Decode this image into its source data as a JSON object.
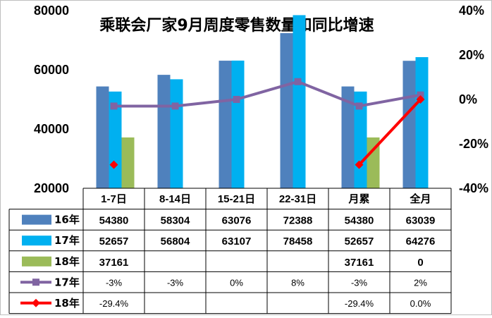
{
  "chart_data": {
    "type": "bar",
    "title": "乘联会厂家9月周度零售数量和同比增速",
    "categories": [
      "1-7日",
      "8-14日",
      "15-21日",
      "22-31日",
      "月累",
      "全月"
    ],
    "y_left": {
      "ticks": [
        "80000",
        "60000",
        "40000",
        "20000"
      ],
      "min": 20000,
      "max": 80000
    },
    "y_right": {
      "ticks": [
        "40%",
        "20%",
        "0%",
        "-20%",
        "-40%"
      ],
      "min": -40,
      "max": 40
    },
    "bar_series": [
      {
        "name": "16年",
        "color": "#4f81bd",
        "values": [
          54380,
          58304,
          63076,
          72388,
          54380,
          63039
        ],
        "labels": [
          "54380",
          "58304",
          "63076",
          "72388",
          "54380",
          "63039"
        ]
      },
      {
        "name": "17年",
        "color": "#00b0f0",
        "values": [
          52657,
          56804,
          63107,
          78458,
          52657,
          64276
        ],
        "labels": [
          "52657",
          "56804",
          "63107",
          "78458",
          "52657",
          "64276"
        ]
      },
      {
        "name": "18年",
        "color": "#9bbb59",
        "values": [
          37161,
          null,
          null,
          null,
          37161,
          0
        ],
        "labels": [
          "37161",
          "",
          "",
          "",
          "37161",
          "0"
        ]
      }
    ],
    "line_series": [
      {
        "name": "17年",
        "color": "#8064a2",
        "marker": "square",
        "values": [
          -3,
          -3,
          0,
          8,
          -3,
          2
        ],
        "labels": [
          "-3%",
          "-3%",
          "0%",
          "8%",
          "-3%",
          "2%"
        ]
      },
      {
        "name": "18年",
        "color": "#ff0000",
        "marker": "diamond",
        "values": [
          -29.4,
          null,
          null,
          null,
          -29.4,
          0.0
        ],
        "labels": [
          "-29.4%",
          "",
          "",
          "",
          "-29.4%",
          "0.0%"
        ]
      }
    ]
  }
}
